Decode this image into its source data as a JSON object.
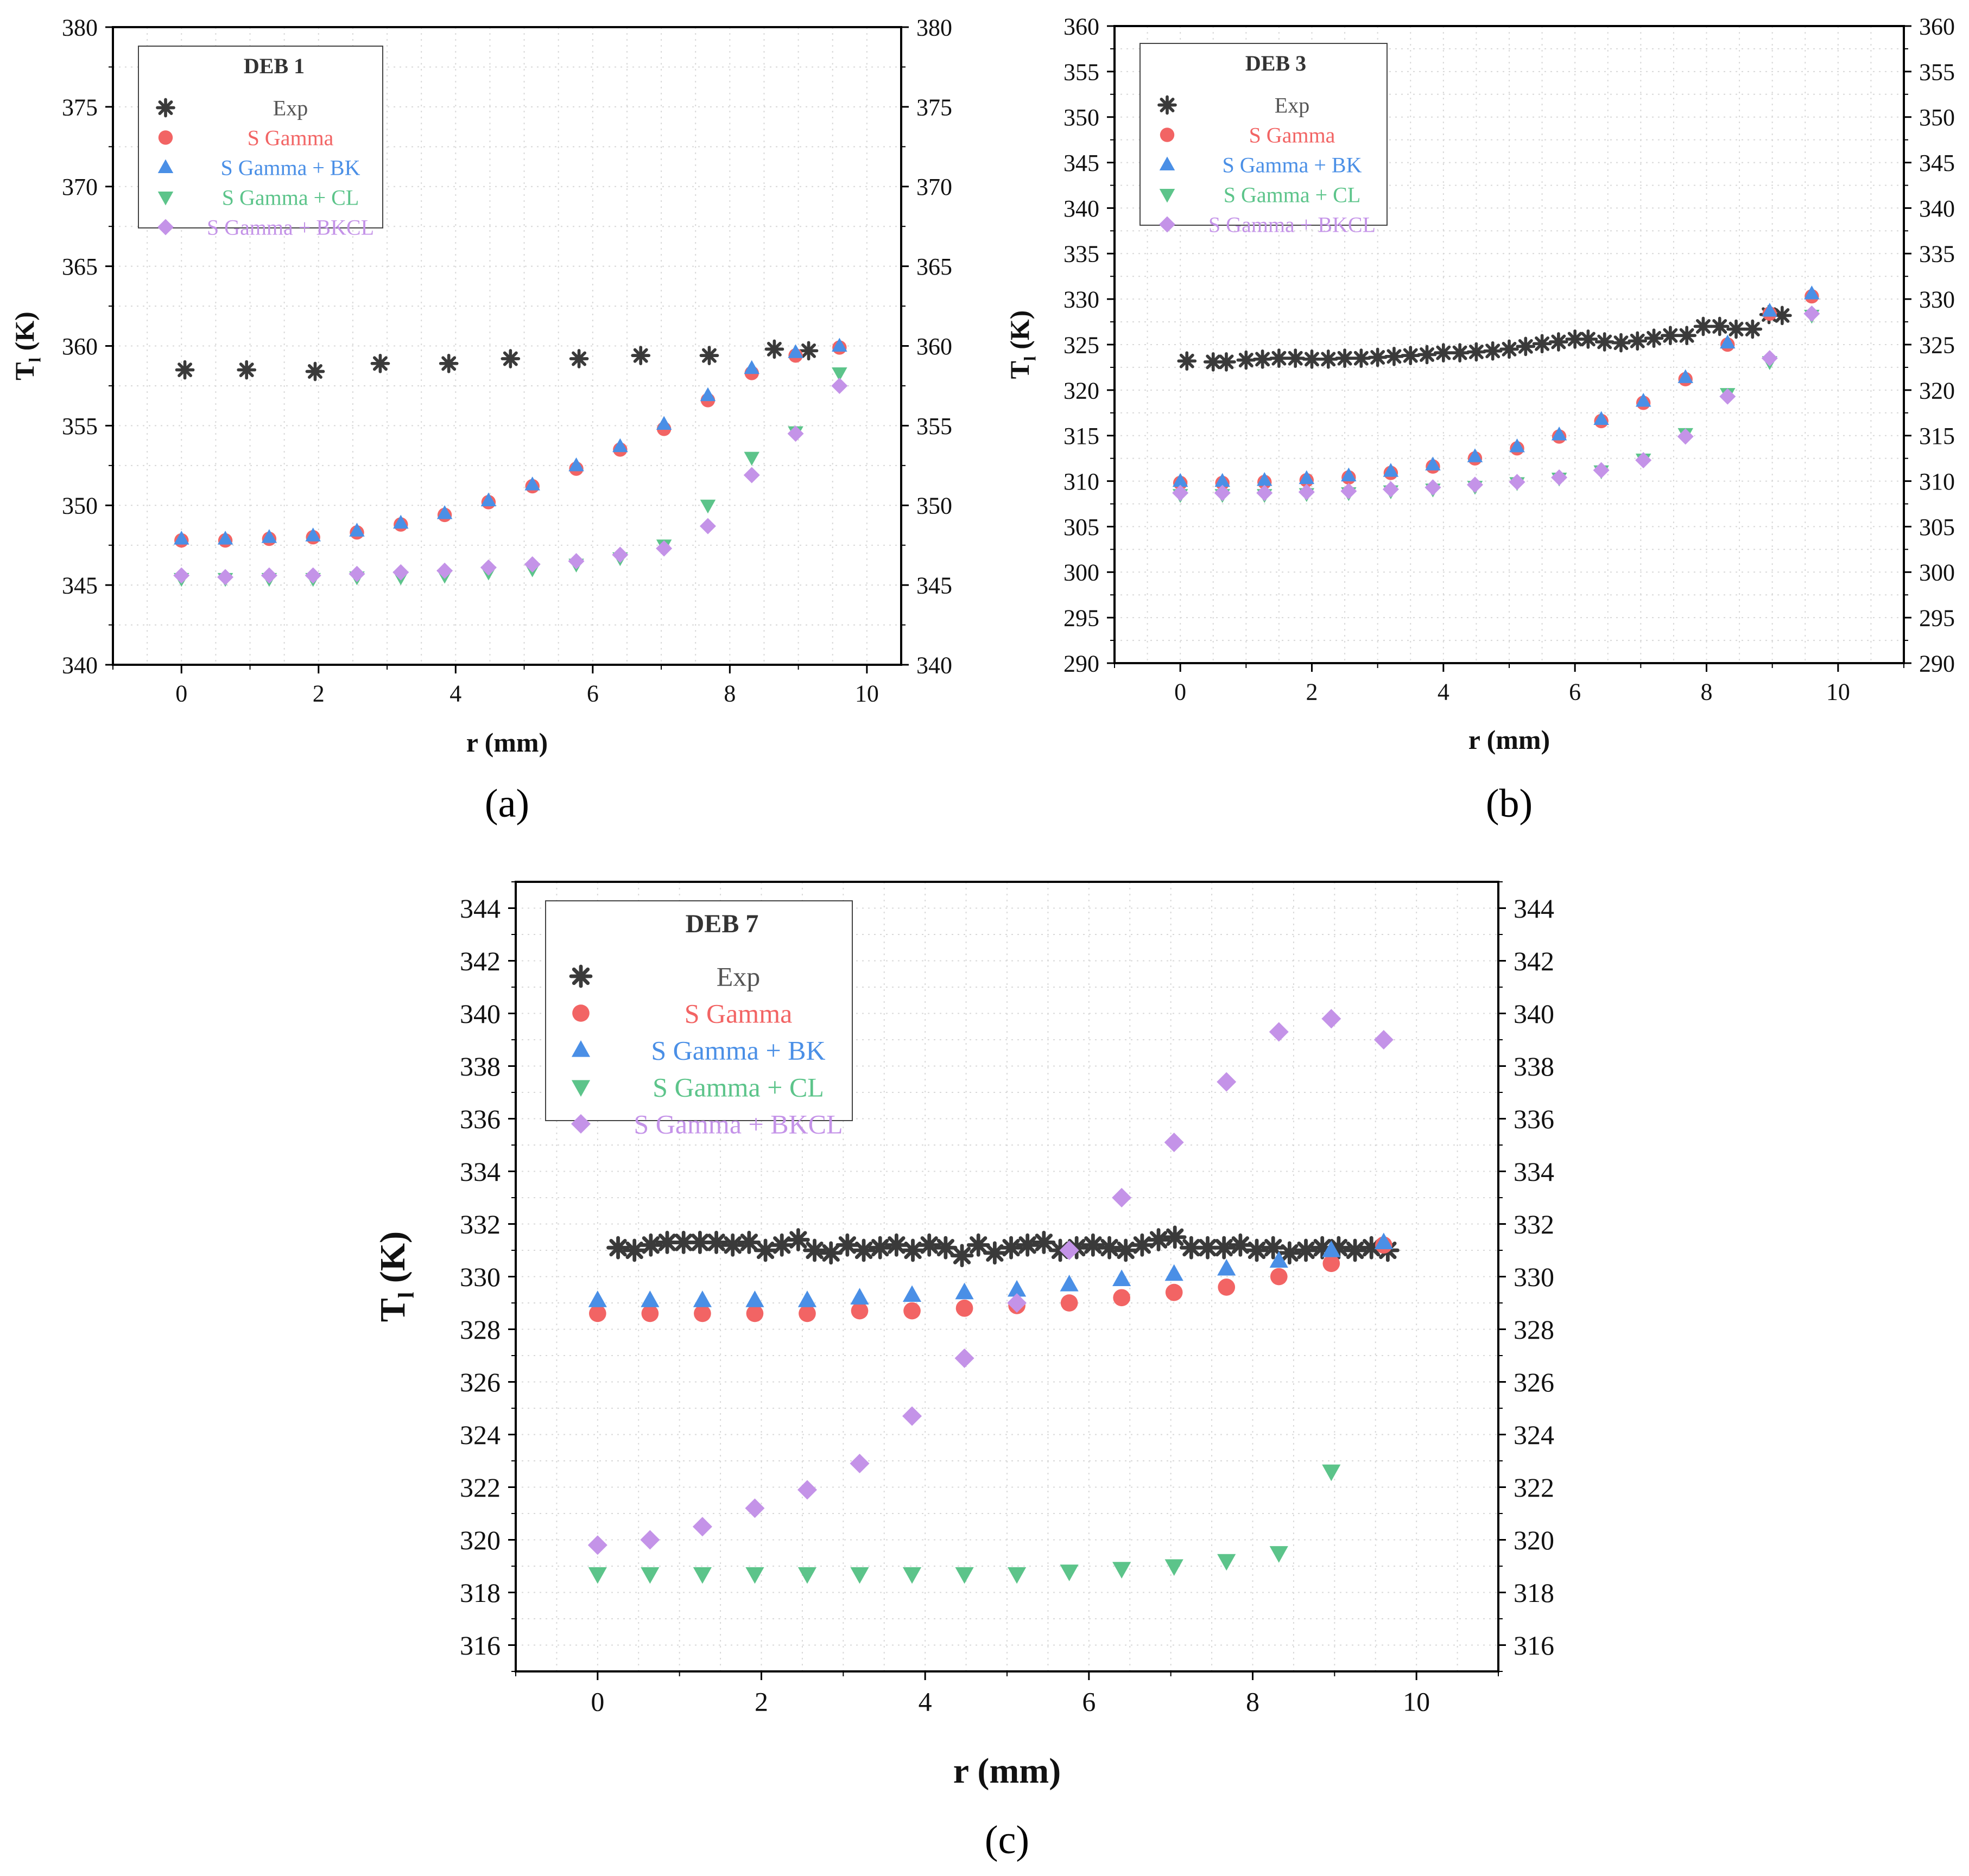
{
  "colors": {
    "exp": "#3a3a3a",
    "s_gamma": "#f26464",
    "s_gamma_bk": "#4a8fe6",
    "s_gamma_cl": "#5cc48a",
    "s_gamma_bkcl": "#c493e8"
  },
  "chart_data": [
    {
      "id": "a",
      "type": "scatter",
      "panel_label": "(a)",
      "legend_title": "DEB 1",
      "xlabel": "r (mm)",
      "ylabel_main": "T",
      "ylabel_sub": "l",
      "ylabel_unit": " (K)",
      "xlim": [
        -1,
        10.5
      ],
      "ylim": [
        340,
        380
      ],
      "xticks": [
        0,
        2,
        4,
        6,
        8,
        10
      ],
      "yticks": [
        340,
        345,
        350,
        355,
        360,
        365,
        370,
        375,
        380
      ],
      "legend_placement": "top-left",
      "series": [
        {
          "name": "Exp",
          "key": "exp",
          "marker": "asterisk",
          "x": [
            0.05,
            0.95,
            1.95,
            2.9,
            3.9,
            4.8,
            5.8,
            6.7,
            7.7,
            8.65,
            9.15
          ],
          "y": [
            358.5,
            358.5,
            358.4,
            358.9,
            358.9,
            359.2,
            359.2,
            359.4,
            359.4,
            359.8,
            359.7
          ]
        },
        {
          "name": "S Gamma",
          "key": "s_gamma",
          "marker": "circle",
          "x": [
            0,
            0.64,
            1.28,
            1.92,
            2.56,
            3.2,
            3.84,
            4.48,
            5.12,
            5.76,
            6.4,
            7.04,
            7.68,
            8.32,
            8.96,
            9.6
          ],
          "y": [
            347.8,
            347.8,
            347.9,
            348.0,
            348.3,
            348.8,
            349.4,
            350.2,
            351.2,
            352.3,
            353.5,
            354.8,
            356.6,
            358.3,
            359.4,
            359.9
          ]
        },
        {
          "name": "S Gamma + BK",
          "key": "s_gamma_bk",
          "marker": "triangle-up",
          "x": [
            0,
            0.64,
            1.28,
            1.92,
            2.56,
            3.2,
            3.84,
            4.48,
            5.12,
            5.76,
            6.4,
            7.04,
            7.68,
            8.32,
            8.96,
            9.6
          ],
          "y": [
            347.9,
            347.9,
            348.0,
            348.1,
            348.4,
            348.9,
            349.5,
            350.3,
            351.3,
            352.5,
            353.7,
            355.1,
            356.9,
            358.6,
            359.6,
            360.0
          ]
        },
        {
          "name": "S Gamma + CL",
          "key": "s_gamma_cl",
          "marker": "triangle-down",
          "x": [
            0,
            0.64,
            1.28,
            1.92,
            2.56,
            3.2,
            3.84,
            4.48,
            5.12,
            5.76,
            6.4,
            7.04,
            7.68,
            8.32,
            8.96,
            9.6
          ],
          "y": [
            345.4,
            345.4,
            345.4,
            345.4,
            345.5,
            345.5,
            345.6,
            345.8,
            346.0,
            346.3,
            346.7,
            347.5,
            350.0,
            353.0,
            354.6,
            358.3
          ]
        },
        {
          "name": "S Gamma + BKCL",
          "key": "s_gamma_bkcl",
          "marker": "diamond",
          "x": [
            0,
            0.64,
            1.28,
            1.92,
            2.56,
            3.2,
            3.84,
            4.48,
            5.12,
            5.76,
            6.4,
            7.04,
            7.68,
            8.32,
            8.96,
            9.6
          ],
          "y": [
            345.6,
            345.5,
            345.6,
            345.6,
            345.7,
            345.8,
            345.9,
            346.1,
            346.3,
            346.5,
            346.9,
            347.3,
            348.7,
            351.9,
            354.5,
            357.5
          ]
        }
      ]
    },
    {
      "id": "b",
      "type": "scatter",
      "panel_label": "(b)",
      "legend_title": "DEB 3",
      "xlabel": "r (mm)",
      "ylabel_main": "T",
      "ylabel_sub": "l",
      "ylabel_unit": " (K)",
      "xlim": [
        -1,
        11
      ],
      "ylim": [
        290,
        360
      ],
      "xticks": [
        0,
        2,
        4,
        6,
        8,
        10
      ],
      "yticks": [
        290,
        295,
        300,
        305,
        310,
        315,
        320,
        325,
        330,
        335,
        340,
        345,
        350,
        355,
        360
      ],
      "legend_placement": "top-left",
      "series": [
        {
          "name": "Exp",
          "key": "exp",
          "marker": "asterisk",
          "x": [
            0.1,
            0.5,
            0.7,
            1.0,
            1.25,
            1.5,
            1.75,
            2.0,
            2.25,
            2.5,
            2.75,
            3.0,
            3.25,
            3.5,
            3.75,
            4.0,
            4.25,
            4.5,
            4.75,
            5.0,
            5.25,
            5.5,
            5.75,
            6.0,
            6.2,
            6.45,
            6.7,
            6.95,
            7.2,
            7.45,
            7.7,
            7.95,
            8.2,
            8.45,
            8.7,
            8.95,
            9.15
          ],
          "y": [
            323.2,
            323.1,
            323.1,
            323.3,
            323.4,
            323.5,
            323.5,
            323.4,
            323.4,
            323.5,
            323.5,
            323.6,
            323.7,
            323.8,
            323.9,
            324.1,
            324.1,
            324.2,
            324.3,
            324.5,
            324.8,
            325.1,
            325.3,
            325.6,
            325.6,
            325.3,
            325.2,
            325.4,
            325.7,
            326.0,
            326.0,
            327.0,
            327.0,
            326.7,
            326.7,
            328.3,
            328.2
          ]
        },
        {
          "name": "S Gamma",
          "key": "s_gamma",
          "marker": "circle",
          "x": [
            0,
            0.64,
            1.28,
            1.92,
            2.56,
            3.2,
            3.84,
            4.48,
            5.12,
            5.76,
            6.4,
            7.04,
            7.68,
            8.32,
            8.96,
            9.6
          ],
          "y": [
            309.8,
            309.8,
            309.9,
            310.1,
            310.4,
            310.9,
            311.6,
            312.5,
            313.6,
            314.9,
            316.6,
            318.6,
            321.2,
            325.0,
            328.4,
            330.3
          ]
        },
        {
          "name": "S Gamma + BK",
          "key": "s_gamma_bk",
          "marker": "triangle-up",
          "x": [
            0,
            0.64,
            1.28,
            1.92,
            2.56,
            3.2,
            3.84,
            4.48,
            5.12,
            5.76,
            6.4,
            7.04,
            7.68,
            8.32,
            8.96,
            9.6
          ],
          "y": [
            310.0,
            310.0,
            310.1,
            310.3,
            310.6,
            311.1,
            311.8,
            312.7,
            313.8,
            315.1,
            316.8,
            318.8,
            321.4,
            325.2,
            328.7,
            330.6
          ]
        },
        {
          "name": "S Gamma + CL",
          "key": "s_gamma_cl",
          "marker": "triangle-down",
          "x": [
            0,
            0.64,
            1.28,
            1.92,
            2.56,
            3.2,
            3.84,
            4.48,
            5.12,
            5.76,
            6.4,
            7.04,
            7.68,
            8.32,
            8.96,
            9.6
          ],
          "y": [
            308.5,
            308.5,
            308.5,
            308.6,
            308.7,
            308.9,
            309.1,
            309.4,
            309.8,
            310.3,
            311.1,
            312.4,
            315.2,
            319.6,
            323.1,
            328.2
          ]
        },
        {
          "name": "S Gamma + BKCL",
          "key": "s_gamma_bkcl",
          "marker": "diamond",
          "x": [
            0,
            0.64,
            1.28,
            1.92,
            2.56,
            3.2,
            3.84,
            4.48,
            5.12,
            5.76,
            6.4,
            7.04,
            7.68,
            8.32,
            8.96,
            9.6
          ],
          "y": [
            308.7,
            308.7,
            308.7,
            308.8,
            308.9,
            309.1,
            309.3,
            309.6,
            309.9,
            310.4,
            311.2,
            312.3,
            314.9,
            319.3,
            323.5,
            328.4
          ]
        }
      ]
    },
    {
      "id": "c",
      "type": "scatter",
      "panel_label": "(c)",
      "legend_title": "DEB 7",
      "xlabel": "r (mm)",
      "ylabel_main": "T",
      "ylabel_sub": "l",
      "ylabel_unit": " (K)",
      "xlim": [
        -1,
        11
      ],
      "ylim": [
        315,
        345
      ],
      "xticks": [
        0,
        2,
        4,
        6,
        8,
        10
      ],
      "yticks": [
        316,
        318,
        320,
        322,
        324,
        326,
        328,
        330,
        332,
        334,
        336,
        338,
        340,
        342,
        344
      ],
      "legend_placement": "top-left",
      "series": [
        {
          "name": "Exp",
          "key": "exp",
          "marker": "asterisk",
          "x": [
            0.25,
            0.45,
            0.65,
            0.85,
            1.05,
            1.25,
            1.45,
            1.65,
            1.85,
            2.05,
            2.25,
            2.45,
            2.65,
            2.85,
            3.05,
            3.25,
            3.45,
            3.65,
            3.85,
            4.05,
            4.25,
            4.45,
            4.65,
            4.85,
            5.05,
            5.25,
            5.45,
            5.65,
            5.85,
            6.05,
            6.25,
            6.45,
            6.65,
            6.85,
            7.05,
            7.25,
            7.45,
            7.65,
            7.85,
            8.05,
            8.25,
            8.45,
            8.65,
            8.85,
            9.05,
            9.25,
            9.45,
            9.65
          ],
          "y": [
            331.1,
            331.0,
            331.2,
            331.3,
            331.3,
            331.3,
            331.3,
            331.2,
            331.3,
            331.0,
            331.2,
            331.4,
            331.0,
            330.9,
            331.2,
            331.0,
            331.1,
            331.2,
            331.0,
            331.2,
            331.1,
            330.8,
            331.2,
            330.9,
            331.1,
            331.2,
            331.3,
            331.0,
            331.1,
            331.2,
            331.1,
            331.0,
            331.2,
            331.4,
            331.5,
            331.1,
            331.1,
            331.1,
            331.2,
            331.0,
            331.1,
            330.9,
            331.0,
            331.1,
            331.1,
            331.0,
            331.1,
            331.0
          ]
        },
        {
          "name": "S Gamma",
          "key": "s_gamma",
          "marker": "circle",
          "x": [
            0,
            0.64,
            1.28,
            1.92,
            2.56,
            3.2,
            3.84,
            4.48,
            5.12,
            5.76,
            6.4,
            7.04,
            7.68,
            8.32,
            8.96,
            9.6
          ],
          "y": [
            328.6,
            328.6,
            328.6,
            328.6,
            328.6,
            328.7,
            328.7,
            328.8,
            328.9,
            329.0,
            329.2,
            329.4,
            329.6,
            330.0,
            330.5,
            331.2
          ]
        },
        {
          "name": "S Gamma + BK",
          "key": "s_gamma_bk",
          "marker": "triangle-up",
          "x": [
            0,
            0.64,
            1.28,
            1.92,
            2.56,
            3.2,
            3.84,
            4.48,
            5.12,
            5.76,
            6.4,
            7.04,
            7.68,
            8.32,
            8.96,
            9.6
          ],
          "y": [
            329.1,
            329.1,
            329.1,
            329.1,
            329.1,
            329.2,
            329.3,
            329.4,
            329.5,
            329.7,
            329.9,
            330.1,
            330.3,
            330.6,
            331.0,
            331.3
          ]
        },
        {
          "name": "S Gamma + CL",
          "key": "s_gamma_cl",
          "marker": "triangle-down",
          "x": [
            0,
            0.64,
            1.28,
            1.92,
            2.56,
            3.2,
            3.84,
            4.48,
            5.12,
            5.76,
            6.4,
            7.04,
            7.68,
            8.32,
            8.96
          ],
          "y": [
            318.7,
            318.7,
            318.7,
            318.7,
            318.7,
            318.7,
            318.7,
            318.7,
            318.7,
            318.8,
            318.9,
            319.0,
            319.2,
            319.5,
            322.6
          ]
        },
        {
          "name": "S Gamma + BKCL",
          "key": "s_gamma_bkcl",
          "marker": "diamond",
          "x": [
            0,
            0.64,
            1.28,
            1.92,
            2.56,
            3.2,
            3.84,
            4.48,
            5.12,
            5.76,
            6.4,
            7.04,
            7.68,
            8.32,
            8.96,
            9.6
          ],
          "y": [
            319.8,
            320.0,
            320.5,
            321.2,
            321.9,
            322.9,
            324.7,
            326.9,
            329.0,
            331.0,
            333.0,
            335.1,
            337.4,
            339.3,
            339.8,
            339.0
          ]
        }
      ]
    }
  ]
}
